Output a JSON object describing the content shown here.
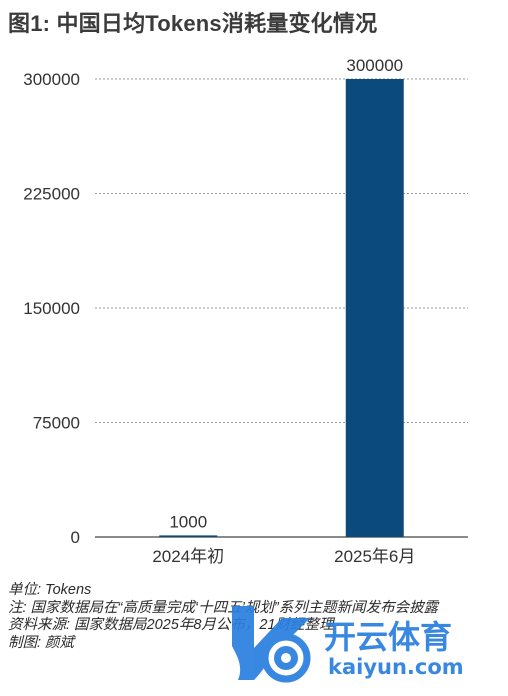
{
  "title": "图1: 中国日均Tokens消耗量变化情况",
  "chart_data": {
    "type": "bar",
    "title": "图1: 中国日均Tokens消耗量变化情况",
    "categories": [
      "2024年初",
      "2025年6月"
    ],
    "values": [
      1000,
      300000
    ],
    "data_labels": [
      "1000",
      "300000"
    ],
    "ylim": [
      0,
      300000
    ],
    "yticks": [
      0,
      75000,
      150000,
      225000,
      300000
    ],
    "ytick_labels": [
      "0",
      "75000",
      "150000",
      "225000",
      "300000"
    ],
    "grid": "horizontal dashed",
    "bar_color": "#0b4a7c"
  },
  "notes": {
    "unit": "单位: Tokens",
    "note": "注: 国家数据局在“高质量完成‘十四五’规划”系列主题新闻发布会披露",
    "source": "资料来源: 国家数据局2025年8月公布，21财经整理",
    "author": "制图: 颜斌"
  },
  "watermark": {
    "brand": "开云体育",
    "url": "kaiyun.com"
  }
}
